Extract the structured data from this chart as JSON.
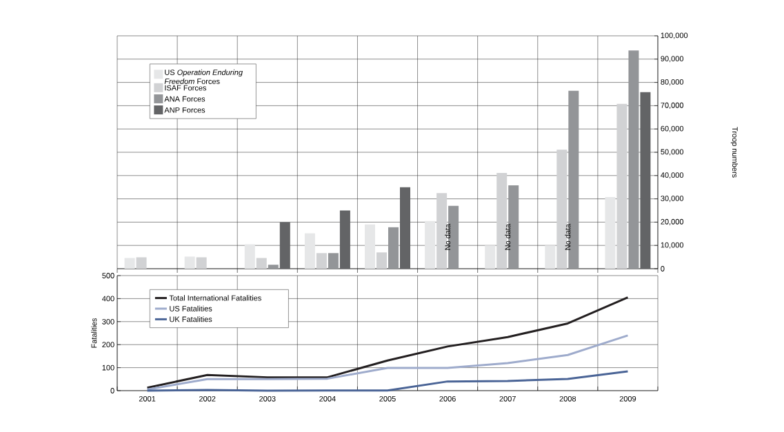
{
  "chart_data": [
    {
      "type": "bar",
      "categories": [
        "2001",
        "2002",
        "2003",
        "2004",
        "2005",
        "2006",
        "2007",
        "2008",
        "2009"
      ],
      "series": [
        {
          "name": "US *Operation Enduring Freedom* Forces",
          "color": "#e6e7e8",
          "values": [
            4600,
            5200,
            10500,
            15200,
            19000,
            20500,
            10000,
            10000,
            30800
          ]
        },
        {
          "name": "ISAF Forces",
          "color": "#d1d2d4",
          "values": [
            4900,
            4900,
            4600,
            6700,
            7000,
            32500,
            41100,
            51100,
            70800
          ]
        },
        {
          "name": "ANA Forces",
          "color": "#939598",
          "values": [
            null,
            null,
            1700,
            6700,
            17800,
            27000,
            35800,
            76400,
            93700
          ]
        },
        {
          "name": "ANP Forces",
          "color": "#636466",
          "values": [
            null,
            null,
            20000,
            25000,
            35000,
            null,
            null,
            null,
            75800
          ]
        }
      ],
      "ylabel": "Troop numbers",
      "ylim": [
        0,
        100000
      ],
      "yticks": [
        0,
        {
          "value": 10000,
          "label": "10,000"
        },
        {
          "value": 20000,
          "label": "20,000"
        },
        {
          "value": 30000,
          "label": "30,000"
        },
        {
          "value": 40000,
          "label": "40,000"
        },
        {
          "value": 50000,
          "label": "50,000"
        },
        {
          "value": 60000,
          "label": "60,000"
        },
        {
          "value": 70000,
          "label": "70,000"
        },
        {
          "value": 80000,
          "label": "80,000"
        },
        {
          "value": 90000,
          "label": "90,000"
        },
        {
          "value": 100000,
          "label": "100,000"
        }
      ],
      "annotations": [
        {
          "text": "No data",
          "x": "2006",
          "y": 0
        },
        {
          "text": "No data",
          "x": "2007",
          "y": 0
        },
        {
          "text": "No data",
          "x": "2008",
          "y": 0
        }
      ],
      "grid": true,
      "legend": "top left",
      "tick_labels": "y"
    },
    {
      "type": "line",
      "categories": [
        "2001",
        "2002",
        "2003",
        "2004",
        "2005",
        "2006",
        "2007",
        "2008",
        "2009"
      ],
      "series": [
        {
          "name": "Total International Fatalities",
          "color": "#231f20",
          "values": [
            13,
            68,
            58,
            58,
            131,
            192,
            233,
            292,
            405
          ]
        },
        {
          "name": "US Fatalities",
          "color": "#9eabcc",
          "values": [
            5,
            50,
            50,
            52,
            99,
            99,
            120,
            155,
            240
          ]
        },
        {
          "name": "UK Fatalities",
          "color": "#4a6496",
          "values": [
            0,
            3,
            0,
            1,
            1,
            40,
            42,
            51,
            84
          ]
        }
      ],
      "ylabel": "Fatalities",
      "ylim": [
        0,
        500
      ],
      "yticks": [
        0,
        100,
        200,
        300,
        400,
        500
      ],
      "grid": true,
      "legend": "top left",
      "marker": "none",
      "line_style": "solid"
    }
  ]
}
